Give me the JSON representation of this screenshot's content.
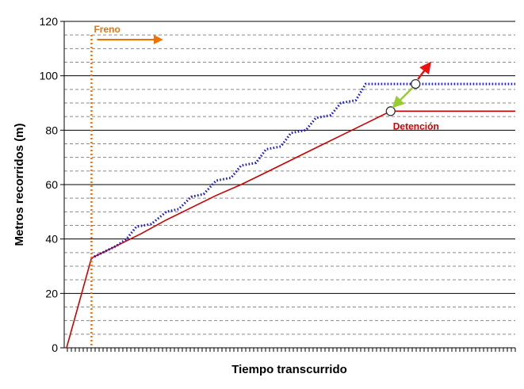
{
  "chart_data": {
    "type": "line",
    "title": "",
    "xlabel": "Tiempo transcurrido",
    "ylabel": "Metros recorridos (m)",
    "ylim": [
      0,
      120
    ],
    "yticks": [
      0,
      20,
      40,
      60,
      80,
      100,
      120
    ],
    "x_tick_labels_shown": false,
    "grid": "horizontal dashed every 5 m",
    "series": [
      {
        "color": "#cc0000",
        "style": "solid",
        "x": [
          0,
          1,
          2,
          3,
          4,
          5,
          6,
          7,
          8,
          9,
          10,
          11,
          12,
          13,
          14,
          15,
          16,
          17,
          18
        ],
        "values": [
          0,
          33,
          37.5,
          42,
          47,
          51.5,
          56,
          60,
          64.5,
          69,
          73.5,
          78,
          82.5,
          87,
          87,
          87,
          87,
          87,
          87
        ]
      },
      {
        "color": "#1a1acc",
        "style": "dotted",
        "x": [
          1,
          2,
          2.4,
          2.8,
          3.4,
          4,
          4.5,
          5,
          5.5,
          6,
          6.6,
          7,
          7.6,
          8,
          8.6,
          9,
          9.6,
          10,
          10.6,
          11,
          11.6,
          12,
          12.6,
          13,
          13.5,
          14,
          15,
          16,
          17,
          18
        ],
        "values": [
          33,
          37.5,
          40,
          44.5,
          45.5,
          50,
          51,
          55.5,
          56.5,
          61.5,
          62.5,
          67,
          68,
          73,
          74,
          79,
          80,
          84.5,
          85.5,
          90,
          91,
          97,
          97,
          97,
          97,
          97,
          97,
          97,
          97,
          97
        ]
      }
    ],
    "annotations": {
      "freno_label": "Freno",
      "detencion_label": "Detención"
    },
    "colors": {
      "freno": "#f07000",
      "detencion_text": "#cc0000",
      "green_arrow": "#99cc33",
      "red_arrow": "#ee1111"
    }
  }
}
